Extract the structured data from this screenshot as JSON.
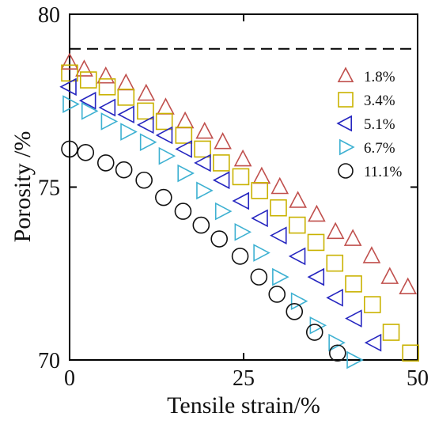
{
  "chart_data": {
    "type": "scatter",
    "title": "",
    "xlabel": "Tensile strain/%",
    "ylabel": "Porosity /%",
    "xlim": [
      0,
      50
    ],
    "ylim": [
      70,
      80
    ],
    "x_ticks": [
      0,
      25,
      50
    ],
    "y_ticks": [
      70,
      75,
      80
    ],
    "x_tick_labels": [
      "0",
      "25",
      "50"
    ],
    "y_tick_labels": [
      "70",
      "75",
      "80"
    ],
    "grid": false,
    "legend_position": "top-right",
    "reference_line": {
      "y": 79,
      "style": "dashed",
      "color": "#000000"
    },
    "series": [
      {
        "name": "1.8%",
        "marker": "triangle-up",
        "color": "#c0504d",
        "x": [
          0,
          2.1,
          5.2,
          8.1,
          11.0,
          13.8,
          16.6,
          19.4,
          22.0,
          24.9,
          27.6,
          30.2,
          32.8,
          35.5,
          38.2,
          40.7,
          43.4,
          46.0,
          48.6
        ],
        "y": [
          78.6,
          78.4,
          78.2,
          78.0,
          77.7,
          77.3,
          76.9,
          76.6,
          76.3,
          75.8,
          75.3,
          75.0,
          74.6,
          74.2,
          73.7,
          73.5,
          73.0,
          72.4,
          72.1
        ]
      },
      {
        "name": "3.4%",
        "marker": "square",
        "color": "#c9b200",
        "x": [
          0,
          2.7,
          5.4,
          8.1,
          10.9,
          13.6,
          16.4,
          19.1,
          21.8,
          24.6,
          27.3,
          30.0,
          32.7,
          35.4,
          38.1,
          40.8,
          43.5,
          46.2,
          49.0
        ],
        "y": [
          78.3,
          78.1,
          77.9,
          77.6,
          77.2,
          76.9,
          76.5,
          76.1,
          75.7,
          75.3,
          74.9,
          74.4,
          73.9,
          73.4,
          72.8,
          72.2,
          71.6,
          70.8,
          70.2
        ]
      },
      {
        "name": "5.1%",
        "marker": "triangle-left",
        "color": "#2626c0",
        "x": [
          0,
          2.8,
          5.6,
          8.3,
          11.1,
          13.8,
          16.6,
          19.3,
          22.0,
          24.8,
          27.5,
          30.2,
          32.9,
          35.6,
          38.3,
          41.0,
          43.8
        ],
        "y": [
          77.9,
          77.5,
          77.3,
          77.1,
          76.8,
          76.5,
          76.1,
          75.7,
          75.2,
          74.6,
          74.1,
          73.6,
          73.0,
          72.4,
          71.8,
          71.2,
          70.5
        ]
      },
      {
        "name": "6.7%",
        "marker": "triangle-right",
        "color": "#3eb1d2",
        "x": [
          0,
          2.7,
          5.5,
          8.3,
          11.1,
          13.8,
          16.5,
          19.2,
          21.9,
          24.7,
          27.4,
          30.1,
          32.8,
          35.5,
          38.2,
          40.8
        ],
        "y": [
          77.4,
          77.2,
          76.9,
          76.6,
          76.3,
          75.9,
          75.4,
          74.9,
          74.3,
          73.7,
          73.1,
          72.4,
          71.7,
          71.0,
          70.5,
          70.0
        ]
      },
      {
        "name": "11.1%",
        "marker": "circle",
        "color": "#111111",
        "x": [
          0,
          2.3,
          5.2,
          7.8,
          10.7,
          13.5,
          16.3,
          18.9,
          21.5,
          24.5,
          27.2,
          29.8,
          32.3,
          35.2,
          38.5
        ],
        "y": [
          76.1,
          76.0,
          75.7,
          75.5,
          75.2,
          74.7,
          74.3,
          73.9,
          73.5,
          73.0,
          72.4,
          71.9,
          71.4,
          70.8,
          70.2
        ]
      }
    ]
  }
}
